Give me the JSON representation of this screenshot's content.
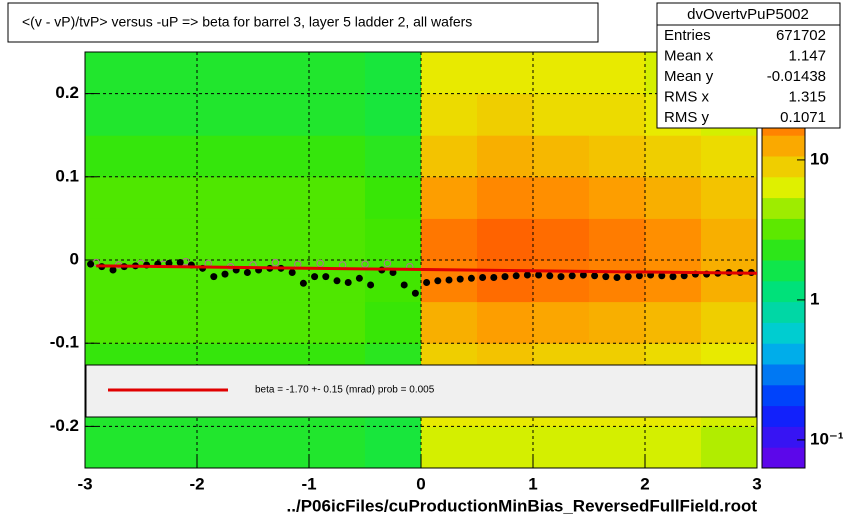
{
  "chart_data": {
    "type": "heatmap-profile",
    "title": "<(v - vP)/tvP> versus  -uP => beta for barrel 3, layer 5 ladder 2, all wafers",
    "x_label": "../P06icFiles/cuProductionMinBias_ReversedFullField.root",
    "xlim": [
      -3,
      3
    ],
    "ylim": [
      -0.25,
      0.25
    ],
    "xticks": [
      -3,
      -2,
      -1,
      0,
      1,
      2,
      3
    ],
    "yticks": [
      -0.2,
      -0.1,
      0,
      0.1,
      0.2
    ],
    "grid": true,
    "zlim": [
      0.063,
      59
    ],
    "zlog": true,
    "zticks": [
      {
        "value": 0.1,
        "label": "10⁻¹"
      },
      1,
      10
    ],
    "heatmap": {
      "xbins": [
        -3,
        -2.5,
        -2,
        -1.5,
        -1,
        -0.5,
        0,
        0.5,
        1,
        1.5,
        2,
        2.5,
        3
      ],
      "ybins": [
        -0.25,
        -0.2,
        -0.15,
        -0.1,
        -0.05,
        0,
        0.05,
        0.1,
        0.15,
        0.2,
        0.25
      ],
      "z": [
        [
          2,
          2,
          2,
          2,
          2,
          1.8,
          6,
          6,
          6,
          6,
          6,
          5
        ],
        [
          2,
          2,
          2,
          2,
          2,
          1.8,
          7,
          7,
          7,
          7,
          7,
          6
        ],
        [
          2.5,
          2.5,
          2.5,
          2.5,
          2.5,
          2.2,
          9,
          10,
          9,
          9,
          8,
          7
        ],
        [
          3,
          3,
          3,
          3,
          3,
          2.6,
          12,
          14,
          13,
          12,
          11,
          9
        ],
        [
          3,
          3,
          3,
          3,
          3,
          2.8,
          18,
          22,
          20,
          18,
          16,
          12
        ],
        [
          3,
          3,
          3,
          3,
          3,
          2.8,
          20,
          24,
          22,
          19,
          16,
          12
        ],
        [
          3,
          3,
          3,
          3,
          3,
          2.6,
          14,
          17,
          16,
          14,
          12,
          10
        ],
        [
          2.5,
          2.5,
          2.5,
          2.5,
          2.5,
          2.2,
          10,
          12,
          11,
          10,
          9,
          8
        ],
        [
          2,
          2,
          2,
          2,
          2,
          1.8,
          8,
          9,
          8,
          8,
          7,
          6
        ],
        [
          2,
          2,
          2,
          2,
          2,
          1.8,
          7,
          7,
          7,
          7,
          6,
          5
        ]
      ]
    },
    "profile": {
      "color": "#000000",
      "x": [
        -2.95,
        -2.85,
        -2.75,
        -2.65,
        -2.55,
        -2.45,
        -2.35,
        -2.25,
        -2.15,
        -2.05,
        -1.95,
        -1.85,
        -1.75,
        -1.65,
        -1.55,
        -1.45,
        -1.35,
        -1.25,
        -1.15,
        -1.05,
        -0.95,
        -0.85,
        -0.75,
        -0.65,
        -0.55,
        -0.45,
        -0.35,
        -0.25,
        -0.15,
        -0.05,
        0.05,
        0.15,
        0.25,
        0.35,
        0.45,
        0.55,
        0.65,
        0.75,
        0.85,
        0.95,
        1.05,
        1.15,
        1.25,
        1.35,
        1.45,
        1.55,
        1.65,
        1.75,
        1.85,
        1.95,
        2.05,
        2.15,
        2.25,
        2.35,
        2.45,
        2.55,
        2.65,
        2.75,
        2.85,
        2.95
      ],
      "values": [
        -0.005,
        -0.008,
        -0.012,
        -0.008,
        -0.007,
        -0.006,
        -0.005,
        -0.004,
        -0.003,
        -0.006,
        -0.01,
        -0.02,
        -0.017,
        -0.012,
        -0.015,
        -0.012,
        -0.01,
        -0.01,
        -0.015,
        -0.028,
        -0.02,
        -0.02,
        -0.025,
        -0.027,
        -0.022,
        -0.03,
        -0.012,
        -0.015,
        -0.03,
        -0.04,
        -0.027,
        -0.025,
        -0.024,
        -0.023,
        -0.022,
        -0.021,
        -0.021,
        -0.02,
        -0.019,
        -0.018,
        -0.018,
        -0.019,
        -0.02,
        -0.019,
        -0.018,
        -0.019,
        -0.02,
        -0.021,
        -0.02,
        -0.019,
        -0.018,
        -0.019,
        -0.02,
        -0.019,
        -0.017,
        -0.017,
        -0.016,
        -0.015,
        -0.015,
        -0.015
      ]
    },
    "profile_open": {
      "color": "#b07090",
      "x": [
        -2.9,
        -2.7,
        -2.5,
        -2.3,
        -2.1,
        -1.9,
        -1.7,
        -1.5,
        -1.3,
        -1.1,
        -0.9,
        -0.7,
        -0.5,
        -0.3,
        -0.1
      ],
      "values": [
        -0.003,
        -0.006,
        -0.004,
        -0.005,
        -0.002,
        -0.004,
        -0.008,
        -0.006,
        -0.003,
        -0.005,
        -0.004,
        -0.006,
        -0.005,
        -0.004,
        -0.008
      ]
    },
    "fit": {
      "color": "#e00000",
      "x": [
        -2.9,
        3
      ],
      "values": [
        -0.007,
        -0.016
      ]
    },
    "legend_text": "beta =   -1.70 +-  0.15 (mrad) prob = 0.005",
    "stats": {
      "title": "dvOvertvPuP5002",
      "rows": [
        [
          "Entries",
          "671702"
        ],
        [
          "Mean x",
          "1.147"
        ],
        [
          "Mean y",
          "-0.01438"
        ],
        [
          "RMS x",
          "1.315"
        ],
        [
          "RMS y",
          "0.1071"
        ]
      ]
    }
  }
}
